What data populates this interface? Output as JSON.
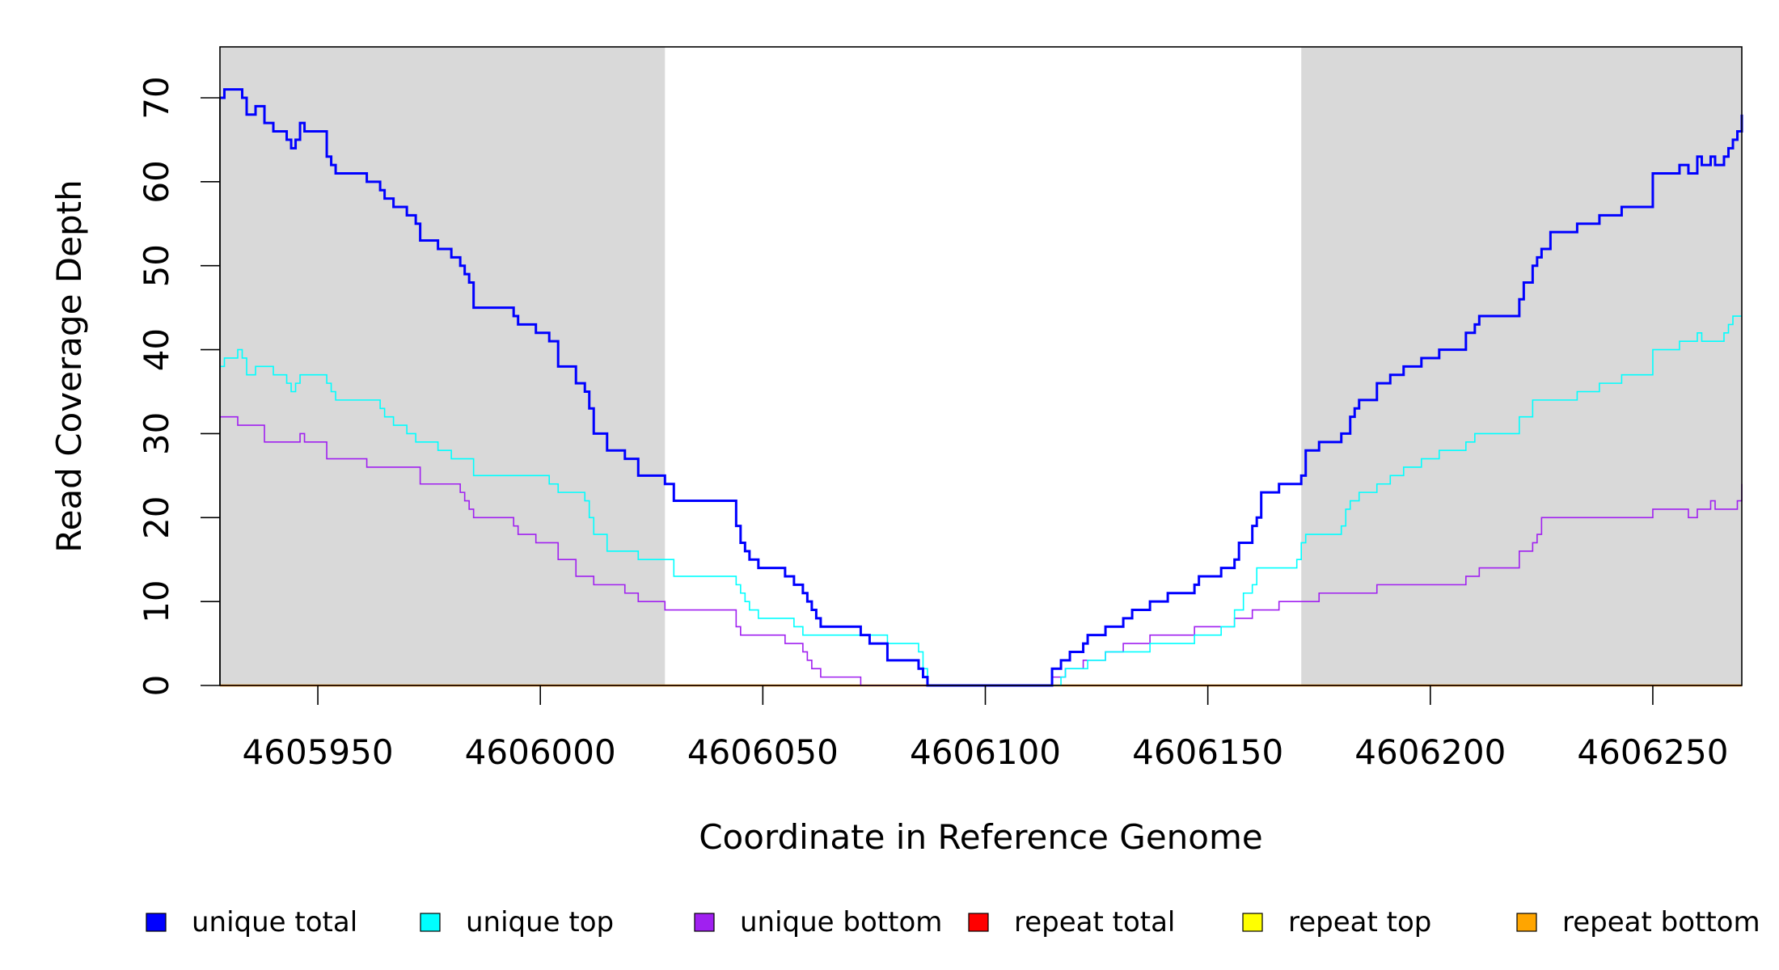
{
  "chart_data": {
    "type": "line",
    "step": true,
    "xlabel": "Coordinate in Reference Genome",
    "ylabel": "Read Coverage Depth",
    "xlim": [
      4605928,
      4606270
    ],
    "ylim": [
      0,
      70
    ],
    "x_ticks": [
      4605950,
      4606000,
      4606050,
      4606100,
      4606150,
      4606200,
      4606250
    ],
    "y_ticks": [
      0,
      10,
      20,
      30,
      40,
      50,
      60,
      70
    ],
    "grid": false,
    "legend_position": "bottom",
    "shaded_regions": [
      [
        4605928,
        4606028
      ],
      [
        4606171,
        4606270
      ]
    ],
    "colors": {
      "shade": "#d9d9d9"
    },
    "series": [
      {
        "name": "unique total",
        "color": "#0000ff",
        "width": 3,
        "points": [
          [
            4605928,
            70
          ],
          [
            4605929,
            71
          ],
          [
            4605933,
            70
          ],
          [
            4605934,
            68
          ],
          [
            4605936,
            69
          ],
          [
            4605938,
            67
          ],
          [
            4605940,
            66
          ],
          [
            4605943,
            65
          ],
          [
            4605944,
            64
          ],
          [
            4605945,
            65
          ],
          [
            4605946,
            67
          ],
          [
            4605947,
            66
          ],
          [
            4605952,
            63
          ],
          [
            4605953,
            62
          ],
          [
            4605954,
            61
          ],
          [
            4605961,
            60
          ],
          [
            4605964,
            59
          ],
          [
            4605965,
            58
          ],
          [
            4605967,
            57
          ],
          [
            4605970,
            56
          ],
          [
            4605972,
            55
          ],
          [
            4605973,
            53
          ],
          [
            4605977,
            52
          ],
          [
            4605980,
            51
          ],
          [
            4605982,
            50
          ],
          [
            4605983,
            49
          ],
          [
            4605984,
            48
          ],
          [
            4605985,
            45
          ],
          [
            4605994,
            44
          ],
          [
            4605995,
            43
          ],
          [
            4605999,
            42
          ],
          [
            4606002,
            41
          ],
          [
            4606004,
            38
          ],
          [
            4606008,
            36
          ],
          [
            4606010,
            35
          ],
          [
            4606011,
            33
          ],
          [
            4606012,
            30
          ],
          [
            4606015,
            28
          ],
          [
            4606019,
            27
          ],
          [
            4606022,
            25
          ],
          [
            4606028,
            24
          ],
          [
            4606030,
            22
          ],
          [
            4606044,
            19
          ],
          [
            4606045,
            17
          ],
          [
            4606046,
            16
          ],
          [
            4606047,
            15
          ],
          [
            4606049,
            14
          ],
          [
            4606055,
            13
          ],
          [
            4606057,
            12
          ],
          [
            4606059,
            11
          ],
          [
            4606060,
            10
          ],
          [
            4606061,
            9
          ],
          [
            4606062,
            8
          ],
          [
            4606063,
            7
          ],
          [
            4606072,
            6
          ],
          [
            4606074,
            5
          ],
          [
            4606078,
            3
          ],
          [
            4606085,
            2
          ],
          [
            4606086,
            1
          ],
          [
            4606087,
            0
          ],
          [
            4606115,
            2
          ],
          [
            4606117,
            3
          ],
          [
            4606119,
            4
          ],
          [
            4606122,
            5
          ],
          [
            4606123,
            6
          ],
          [
            4606127,
            7
          ],
          [
            4606131,
            8
          ],
          [
            4606133,
            9
          ],
          [
            4606137,
            10
          ],
          [
            4606141,
            11
          ],
          [
            4606147,
            12
          ],
          [
            4606148,
            13
          ],
          [
            4606153,
            14
          ],
          [
            4606156,
            15
          ],
          [
            4606157,
            17
          ],
          [
            4606160,
            19
          ],
          [
            4606161,
            20
          ],
          [
            4606162,
            23
          ],
          [
            4606166,
            24
          ],
          [
            4606171,
            25
          ],
          [
            4606172,
            28
          ],
          [
            4606175,
            29
          ],
          [
            4606180,
            30
          ],
          [
            4606182,
            32
          ],
          [
            4606183,
            33
          ],
          [
            4606184,
            34
          ],
          [
            4606188,
            36
          ],
          [
            4606191,
            37
          ],
          [
            4606194,
            38
          ],
          [
            4606198,
            39
          ],
          [
            4606202,
            40
          ],
          [
            4606208,
            42
          ],
          [
            4606210,
            43
          ],
          [
            4606211,
            44
          ],
          [
            4606220,
            46
          ],
          [
            4606221,
            48
          ],
          [
            4606223,
            50
          ],
          [
            4606224,
            51
          ],
          [
            4606225,
            52
          ],
          [
            4606227,
            54
          ],
          [
            4606233,
            55
          ],
          [
            4606238,
            56
          ],
          [
            4606243,
            57
          ],
          [
            4606250,
            61
          ],
          [
            4606256,
            62
          ],
          [
            4606258,
            61
          ],
          [
            4606260,
            63
          ],
          [
            4606261,
            62
          ],
          [
            4606263,
            63
          ],
          [
            4606264,
            62
          ],
          [
            4606266,
            63
          ],
          [
            4606267,
            64
          ],
          [
            4606268,
            65
          ],
          [
            4606269,
            66
          ],
          [
            4606270,
            67
          ],
          [
            4606270,
            68
          ]
        ]
      },
      {
        "name": "unique top",
        "color": "#00ffff",
        "width": 1.6,
        "points": [
          [
            4605928,
            38
          ],
          [
            4605929,
            39
          ],
          [
            4605932,
            40
          ],
          [
            4605933,
            39
          ],
          [
            4605934,
            37
          ],
          [
            4605936,
            38
          ],
          [
            4605940,
            37
          ],
          [
            4605943,
            36
          ],
          [
            4605944,
            35
          ],
          [
            4605945,
            36
          ],
          [
            4605946,
            37
          ],
          [
            4605952,
            36
          ],
          [
            4605953,
            35
          ],
          [
            4605954,
            34
          ],
          [
            4605964,
            33
          ],
          [
            4605965,
            32
          ],
          [
            4605967,
            31
          ],
          [
            4605970,
            30
          ],
          [
            4605972,
            29
          ],
          [
            4605977,
            28
          ],
          [
            4605980,
            27
          ],
          [
            4605985,
            25
          ],
          [
            4606002,
            24
          ],
          [
            4606004,
            23
          ],
          [
            4606010,
            22
          ],
          [
            4606011,
            20
          ],
          [
            4606012,
            18
          ],
          [
            4606015,
            16
          ],
          [
            4606022,
            15
          ],
          [
            4606030,
            13
          ],
          [
            4606044,
            12
          ],
          [
            4606045,
            11
          ],
          [
            4606046,
            10
          ],
          [
            4606047,
            9
          ],
          [
            4606049,
            8
          ],
          [
            4606057,
            7
          ],
          [
            4606059,
            6
          ],
          [
            4606078,
            5
          ],
          [
            4606085,
            4
          ],
          [
            4606086,
            2
          ],
          [
            4606087,
            0
          ],
          [
            4606117,
            1
          ],
          [
            4606118,
            2
          ],
          [
            4606123,
            3
          ],
          [
            4606127,
            4
          ],
          [
            4606137,
            5
          ],
          [
            4606147,
            6
          ],
          [
            4606153,
            7
          ],
          [
            4606156,
            9
          ],
          [
            4606158,
            11
          ],
          [
            4606160,
            12
          ],
          [
            4606161,
            14
          ],
          [
            4606170,
            15
          ],
          [
            4606171,
            17
          ],
          [
            4606172,
            18
          ],
          [
            4606180,
            19
          ],
          [
            4606181,
            21
          ],
          [
            4606182,
            22
          ],
          [
            4606184,
            23
          ],
          [
            4606188,
            24
          ],
          [
            4606191,
            25
          ],
          [
            4606194,
            26
          ],
          [
            4606198,
            27
          ],
          [
            4606202,
            28
          ],
          [
            4606208,
            29
          ],
          [
            4606210,
            30
          ],
          [
            4606220,
            32
          ],
          [
            4606223,
            34
          ],
          [
            4606233,
            35
          ],
          [
            4606238,
            36
          ],
          [
            4606243,
            37
          ],
          [
            4606250,
            40
          ],
          [
            4606256,
            41
          ],
          [
            4606260,
            42
          ],
          [
            4606261,
            41
          ],
          [
            4606266,
            42
          ],
          [
            4606267,
            43
          ],
          [
            4606268,
            44
          ],
          [
            4606270,
            44
          ]
        ]
      },
      {
        "name": "unique bottom",
        "color": "#a020f0",
        "width": 1.6,
        "points": [
          [
            4605928,
            32
          ],
          [
            4605932,
            31
          ],
          [
            4605938,
            29
          ],
          [
            4605946,
            30
          ],
          [
            4605947,
            29
          ],
          [
            4605952,
            27
          ],
          [
            4605961,
            26
          ],
          [
            4605973,
            24
          ],
          [
            4605982,
            23
          ],
          [
            4605983,
            22
          ],
          [
            4605984,
            21
          ],
          [
            4605985,
            20
          ],
          [
            4605994,
            19
          ],
          [
            4605995,
            18
          ],
          [
            4605999,
            17
          ],
          [
            4606004,
            15
          ],
          [
            4606008,
            13
          ],
          [
            4606012,
            12
          ],
          [
            4606019,
            11
          ],
          [
            4606022,
            10
          ],
          [
            4606028,
            9
          ],
          [
            4606044,
            7
          ],
          [
            4606045,
            6
          ],
          [
            4606055,
            5
          ],
          [
            4606059,
            4
          ],
          [
            4606060,
            3
          ],
          [
            4606061,
            2
          ],
          [
            4606063,
            1
          ],
          [
            4606072,
            0
          ],
          [
            4606115,
            1
          ],
          [
            4606118,
            2
          ],
          [
            4606122,
            3
          ],
          [
            4606127,
            4
          ],
          [
            4606131,
            5
          ],
          [
            4606137,
            6
          ],
          [
            4606147,
            7
          ],
          [
            4606156,
            8
          ],
          [
            4606160,
            9
          ],
          [
            4606166,
            10
          ],
          [
            4606175,
            11
          ],
          [
            4606188,
            12
          ],
          [
            4606208,
            13
          ],
          [
            4606211,
            14
          ],
          [
            4606220,
            16
          ],
          [
            4606223,
            17
          ],
          [
            4606224,
            18
          ],
          [
            4606225,
            20
          ],
          [
            4606250,
            21
          ],
          [
            4606258,
            20
          ],
          [
            4606260,
            21
          ],
          [
            4606263,
            22
          ],
          [
            4606264,
            21
          ],
          [
            4606269,
            22
          ],
          [
            4606270,
            23
          ],
          [
            4606270,
            24
          ]
        ]
      },
      {
        "name": "repeat total",
        "color": "#ff0000",
        "width": 1.6,
        "points": [
          [
            4605928,
            0
          ],
          [
            4606270,
            0
          ]
        ]
      },
      {
        "name": "repeat top",
        "color": "#ffff00",
        "width": 1.6,
        "points": [
          [
            4605928,
            0
          ],
          [
            4606270,
            0
          ]
        ]
      },
      {
        "name": "repeat bottom",
        "color": "#ffa500",
        "width": 2.4,
        "points": [
          [
            4605928,
            0
          ],
          [
            4606270,
            0
          ]
        ]
      }
    ]
  }
}
